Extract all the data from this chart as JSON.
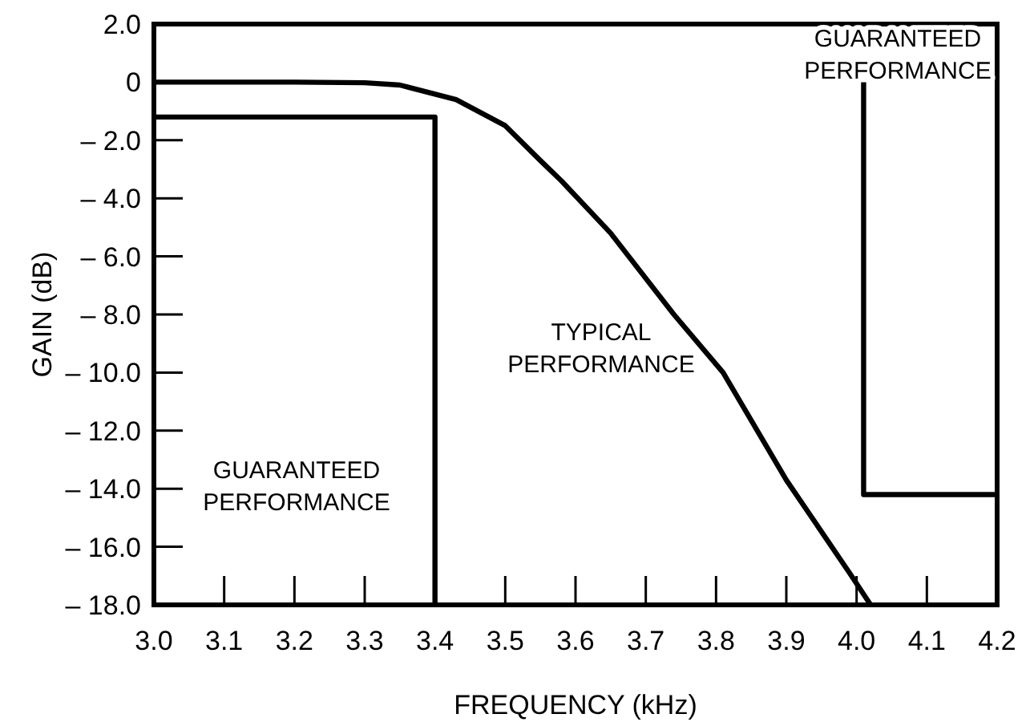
{
  "chart_data": {
    "type": "line",
    "xlabel": "FREQUENCY (kHz)",
    "ylabel": "GAIN (dB)",
    "xlim": [
      3.0,
      4.2
    ],
    "xticks": [
      {
        "value": 3.0,
        "label": "3.0"
      },
      3.1,
      3.2,
      3.3,
      3.4,
      3.5,
      3.6,
      3.7,
      3.8,
      3.9,
      {
        "value": 4.0,
        "label": "4.0"
      },
      4.1,
      4.2
    ],
    "ylim": [
      -18,
      2
    ],
    "yticks": [
      {
        "value": 2,
        "label": "2.0"
      },
      0,
      {
        "value": -2,
        "label": "– 2.0"
      },
      {
        "value": -4,
        "label": "– 4.0"
      },
      {
        "value": -6,
        "label": "– 6.0"
      },
      {
        "value": -8,
        "label": "– 8.0"
      },
      {
        "value": -10,
        "label": "– 10.0"
      },
      {
        "value": -12,
        "label": "– 12.0"
      },
      {
        "value": -14,
        "label": "– 14.0"
      },
      {
        "value": -16,
        "label": "– 16.0"
      },
      {
        "value": -18,
        "label": "– 18.0"
      }
    ],
    "grid": false,
    "marker": "none",
    "line_style": "solid",
    "series": [
      {
        "color": "#000000",
        "x": [
          3.0,
          3.2,
          3.3,
          3.35,
          3.43,
          3.5,
          3.55,
          3.58,
          3.65,
          3.74,
          3.81,
          3.9,
          3.99,
          4.02
        ],
        "values": [
          0,
          0,
          -0.02,
          -0.1,
          -0.6,
          -1.5,
          -2.7,
          -3.4,
          -5.2,
          -8.0,
          -10.0,
          -13.7,
          -16.9,
          -18
        ]
      },
      {
        "color": "#000000",
        "x": [
          3.0,
          3.4,
          3.4
        ],
        "values": [
          -1.2,
          -1.2,
          -18
        ]
      },
      {
        "color": "#000000",
        "x": [
          4.01,
          4.01,
          4.2
        ],
        "values": [
          0,
          -14.2,
          -14.2
        ]
      }
    ],
    "annotations": [
      "GUARANTEED\nPERFORMANCE",
      "TYPICAL\nPERFORMANCE",
      "GUARANTEED\nPERFORMANCE"
    ]
  }
}
